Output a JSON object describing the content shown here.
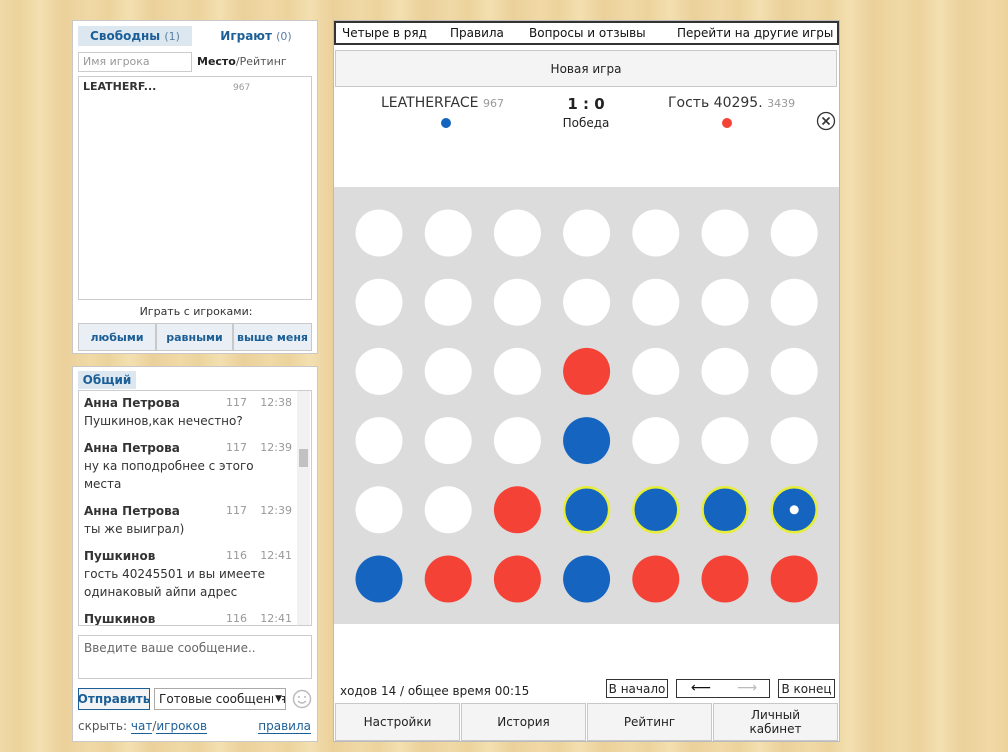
{
  "players_panel": {
    "tab_free": "Свободны",
    "tab_free_count": "(1)",
    "tab_playing": "Играют",
    "tab_playing_count": "(0)",
    "search_placeholder": "Имя игрока",
    "sort_place": "Место",
    "sort_rating": "/Рейтинг",
    "players": [
      {
        "name": "LEATHERF...",
        "rating": 967
      }
    ],
    "play_with": "Играть с игроками:",
    "filters": [
      "любыми",
      "равными",
      "выше меня"
    ]
  },
  "chat": {
    "tab": "Общий",
    "messages": [
      {
        "name": "Анна Петрова",
        "level": 117,
        "time": "12:38",
        "text": "Пушкинов,как нечестно?"
      },
      {
        "name": "Анна Петрова",
        "level": 117,
        "time": "12:39",
        "text": "ну ка поподробнее с этого места"
      },
      {
        "name": "Анна Петрова",
        "level": 117,
        "time": "12:39",
        "text": "ты же выиграл)"
      },
      {
        "name": "Пушкинов",
        "level": 116,
        "time": "12:41",
        "text": "гость 40245501 и вы имеете одинаковый айпи адрес"
      },
      {
        "name": "Пушкинов",
        "level": 116,
        "time": "12:41"
      }
    ],
    "input_placeholder": "Введите ваше сообщение..",
    "send": "Отправить",
    "ready_messages": "Готовые сообщения",
    "hide": "скрыть:",
    "hide_chat": "чат",
    "hide_sep": "/",
    "hide_players": "игроков",
    "rules": "правила"
  },
  "menu": [
    "Четыре в ряд",
    "Правила",
    "Вопросы и отзывы",
    "Перейти на другие игры"
  ],
  "new_game": "Новая игра",
  "score": {
    "player1": "LEATHERFACE",
    "player1_rating": 967,
    "result": "1 : 0",
    "status": "Победа",
    "player2": "Гость 40295.",
    "player2_rating": 3439
  },
  "footer": {
    "moves": "ходов 14 / общее время 00:15",
    "to_start": "В начало",
    "back": "⟵",
    "forward": "⟶",
    "to_end": "В конец"
  },
  "tabs": [
    "Настройки",
    "История",
    "Рейтинг",
    "Личный кабинет"
  ]
}
